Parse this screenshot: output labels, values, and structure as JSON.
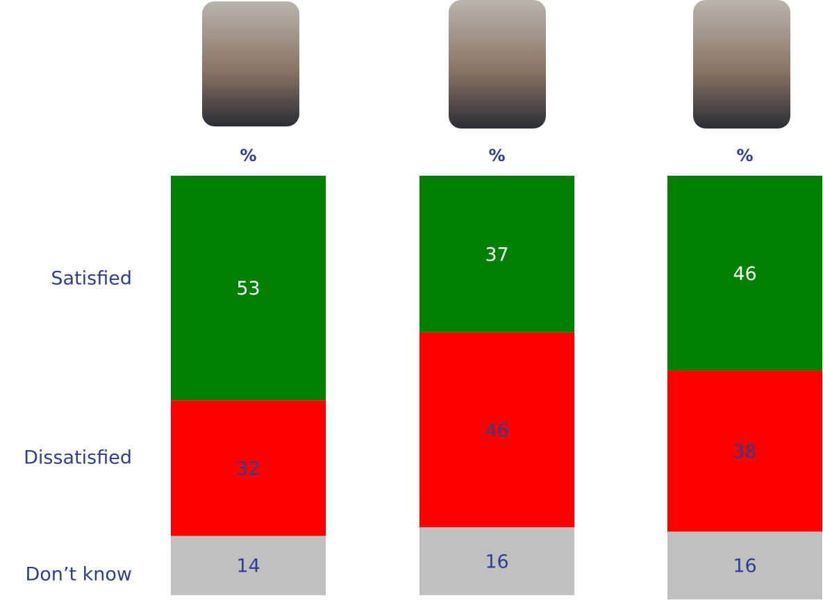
{
  "chart_data": {
    "type": "stacked-bar",
    "categories": [
      null,
      null,
      null
    ],
    "column_labels": [
      "%",
      "%",
      "%"
    ],
    "series": [
      {
        "name": "Satisfied",
        "color": "#008000",
        "values": [
          53,
          37,
          46
        ]
      },
      {
        "name": "Dissatisfied",
        "color": "#ff0000",
        "values": [
          32,
          46,
          38
        ]
      },
      {
        "name": "Don’t know",
        "color": "#c0c0c0",
        "values": [
          14,
          16,
          16
        ]
      }
    ]
  }
}
